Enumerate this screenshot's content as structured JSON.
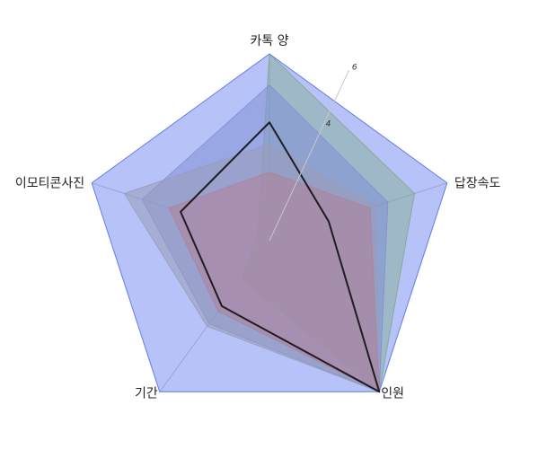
{
  "chart_data": {
    "type": "radar",
    "axes": [
      "카톡 양",
      "답장속도",
      "인원",
      "기간",
      "이모티콘사진"
    ],
    "tick_labels": [
      "4",
      "6"
    ],
    "rmax": 6,
    "grid_levels": [
      6
    ],
    "series": [
      {
        "values": [
          6.0,
          4.9,
          6.0,
          1.5,
          0.4
        ],
        "color": "#9fd23a",
        "opacity": 0.45,
        "stroke_width": 1
      },
      {
        "values": [
          5.0,
          4.0,
          6.0,
          3.3,
          4.3
        ],
        "color": "#9aa4c0",
        "opacity": 0.55,
        "stroke_width": 1
      },
      {
        "values": [
          3.1,
          3.6,
          6.0,
          3.4,
          4.9
        ],
        "color": "#c9b98c",
        "opacity": 0.55,
        "stroke_width": 1
      },
      {
        "values": [
          2.2,
          3.4,
          6.0,
          2.8,
          3.4
        ],
        "color": "#f08b5a",
        "opacity": 0.6,
        "stroke_width": 1
      },
      {
        "values": [
          6.0,
          6.0,
          6.0,
          6.0,
          6.0
        ],
        "color": "#5f7bf0",
        "opacity": 0.45,
        "stroke_width": 1
      },
      {
        "values": [
          3.8,
          2.0,
          6.0,
          2.6,
          3.0
        ],
        "color": "#111111",
        "opacity": 0.0,
        "stroke_width": 2
      }
    ]
  }
}
